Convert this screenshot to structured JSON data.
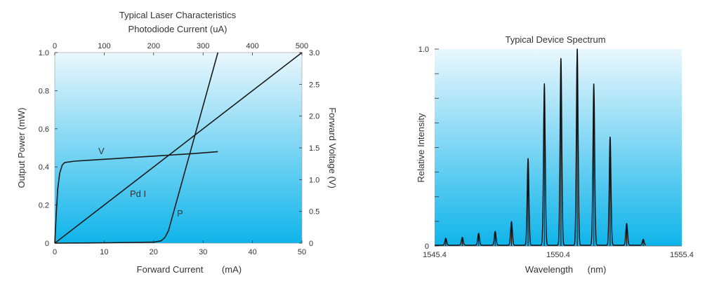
{
  "chart_data": [
    {
      "type": "line",
      "title": "Typical Laser Characteristics",
      "top_axis_title": "Photodiode Current (uA)",
      "xlabel": "Forward Current",
      "xlabel_unit": "(mA)",
      "ylabel": "Output Power (mW)",
      "y2label": "Forward Voltage (V)",
      "xlim": [
        0,
        50
      ],
      "ylim": [
        0,
        1.0
      ],
      "y2lim": [
        0,
        3.0
      ],
      "top_xlim": [
        0,
        500
      ],
      "x_ticks": [
        "0",
        "10",
        "20",
        "30",
        "40",
        "50"
      ],
      "top_ticks": [
        "0",
        "100",
        "200",
        "300",
        "400",
        "500"
      ],
      "y_ticks": [
        "0",
        "0.2",
        "0.4",
        "0.6",
        "0.8",
        "1.0"
      ],
      "y2_ticks": [
        "0",
        "0.5",
        "1.0",
        "1.5",
        "2.0",
        "2.5",
        "3.0"
      ],
      "background_gradient": [
        "#0fb4ea",
        "#eaf7fd"
      ],
      "series": [
        {
          "name": "V",
          "axis": "right",
          "x": [
            0,
            0.3,
            0.6,
            1.0,
            1.5,
            2.0,
            4,
            8,
            12,
            16,
            20,
            24,
            28,
            33
          ],
          "values": [
            0,
            0.45,
            0.85,
            1.1,
            1.23,
            1.27,
            1.29,
            1.31,
            1.33,
            1.35,
            1.37,
            1.39,
            1.41,
            1.44
          ]
        },
        {
          "name": "Pd I",
          "axis": "right",
          "x": [
            0,
            50
          ],
          "values": [
            0,
            3.0
          ]
        },
        {
          "name": "P",
          "axis": "left",
          "x": [
            0,
            10,
            20,
            21.5,
            22.3,
            23,
            33
          ],
          "values": [
            0,
            0.002,
            0.005,
            0.012,
            0.03,
            0.065,
            1.0
          ]
        }
      ]
    },
    {
      "type": "line",
      "title": "Typical Device Spectrum",
      "xlabel": "Wavelength",
      "xlabel_unit": "(nm)",
      "ylabel": "Relative Intensity",
      "xlim": [
        1545.4,
        1555.4
      ],
      "ylim": [
        0,
        1.0
      ],
      "x_ticks": [
        "1545.4",
        "1550.4",
        "1555.4"
      ],
      "y_ticks": [
        "0",
        "1.0"
      ],
      "background_gradient": [
        "#0fb4ea",
        "#eaf7fd"
      ],
      "series": [
        {
          "peaks_x": [
            1545.85,
            1546.52,
            1547.18,
            1547.85,
            1548.51,
            1549.18,
            1549.84,
            1550.51,
            1551.17,
            1551.84,
            1552.5,
            1553.17,
            1553.84
          ],
          "peaks_y": [
            0.035,
            0.04,
            0.06,
            0.07,
            0.12,
            0.44,
            0.82,
            0.95,
            1.0,
            0.82,
            0.55,
            0.11,
            0.03
          ]
        }
      ]
    }
  ]
}
